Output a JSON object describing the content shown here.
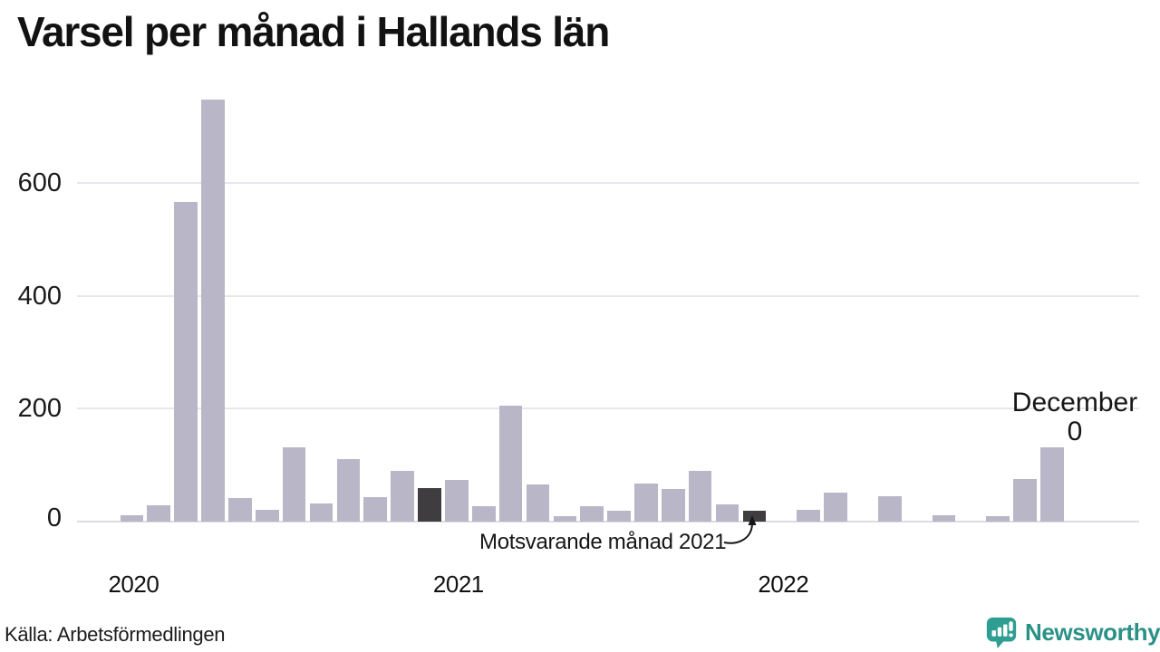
{
  "title": "Varsel per månad i Hallands län",
  "source": "Källa: Arbetsförmedlingen",
  "brand": {
    "name": "Newsworthy",
    "icon": "bar-chart-speech-bubble-icon",
    "color": "#2b9187",
    "icon_color": "#2f9e92"
  },
  "annotations": {
    "comparison_label": "Motsvarande månad 2021",
    "latest_label": "December",
    "latest_value": "0"
  },
  "colors": {
    "bar": "#b9b6c7",
    "highlight_bar": "#3f3d40",
    "gridline": "#e6e6ed",
    "baseline": "#dcdce4",
    "axis_text": "#1a1a1a"
  },
  "chart_data": {
    "type": "bar",
    "title": "Varsel per månad i Hallands län",
    "xlabel": "",
    "ylabel": "",
    "y_ticks": [
      0,
      200,
      400,
      600
    ],
    "ylim": [
      0,
      760
    ],
    "grid": true,
    "x": [
      "2020-01",
      "2020-02",
      "2020-03",
      "2020-04",
      "2020-05",
      "2020-06",
      "2020-07",
      "2020-08",
      "2020-09",
      "2020-10",
      "2020-11",
      "2020-12",
      "2021-01",
      "2021-02",
      "2021-03",
      "2021-04",
      "2021-05",
      "2021-06",
      "2021-07",
      "2021-08",
      "2021-09",
      "2021-10",
      "2021-11",
      "2021-12",
      "2022-01",
      "2022-02",
      "2022-03",
      "2022-04",
      "2022-05",
      "2022-06",
      "2022-07",
      "2022-08",
      "2022-09",
      "2022-10",
      "2022-11",
      "2022-12"
    ],
    "values": [
      12,
      29,
      566,
      748,
      41,
      21,
      131,
      32,
      111,
      44,
      90,
      60,
      73,
      28,
      205,
      66,
      10,
      28,
      20,
      67,
      57,
      90,
      31,
      20,
      0,
      21,
      52,
      0,
      45,
      0,
      12,
      0,
      10,
      75,
      132,
      0
    ],
    "highlight_indices": [
      11,
      23
    ],
    "highlight_meaning": "Motsvarande månad 2021",
    "latest_point": {
      "month": "2022-12",
      "label": "December",
      "value": 0
    },
    "x_year_ticks": [
      {
        "label": "2020",
        "month_index": 0
      },
      {
        "label": "2021",
        "month_index": 12
      },
      {
        "label": "2022",
        "month_index": 24
      }
    ],
    "legend": null
  }
}
